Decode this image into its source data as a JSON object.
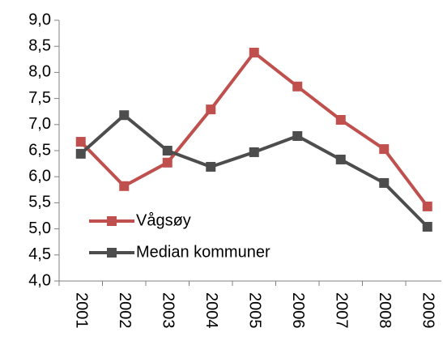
{
  "chart_data": {
    "type": "line",
    "categories": [
      "2001",
      "2002",
      "2003",
      "2004",
      "2005",
      "2006",
      "2007",
      "2008",
      "2009"
    ],
    "series": [
      {
        "name": "Vågsøy",
        "color": "#c0504d",
        "values": [
          6.67,
          5.82,
          6.27,
          7.29,
          8.38,
          7.73,
          7.09,
          6.53,
          5.43
        ]
      },
      {
        "name": "Median kommuner",
        "color": "#4d4d4d",
        "values": [
          6.44,
          7.18,
          6.5,
          6.19,
          6.47,
          6.78,
          6.33,
          5.88,
          5.04
        ]
      }
    ],
    "ylim": [
      4,
      9
    ],
    "yticks": [
      {
        "value": 4,
        "label": "4,0"
      },
      {
        "value": 4.5,
        "label": "4,5"
      },
      {
        "value": 5,
        "label": "5,0"
      },
      {
        "value": 5.5,
        "label": "5,5"
      },
      {
        "value": 6,
        "label": "6,0"
      },
      {
        "value": 6.5,
        "label": "6,5"
      },
      {
        "value": 7,
        "label": "7,0"
      },
      {
        "value": 7.5,
        "label": "7,5"
      },
      {
        "value": 8,
        "label": "8,0"
      },
      {
        "value": 8.5,
        "label": "8,5"
      },
      {
        "value": 9,
        "label": "9,0"
      }
    ],
    "grid": false,
    "legend": "left"
  }
}
